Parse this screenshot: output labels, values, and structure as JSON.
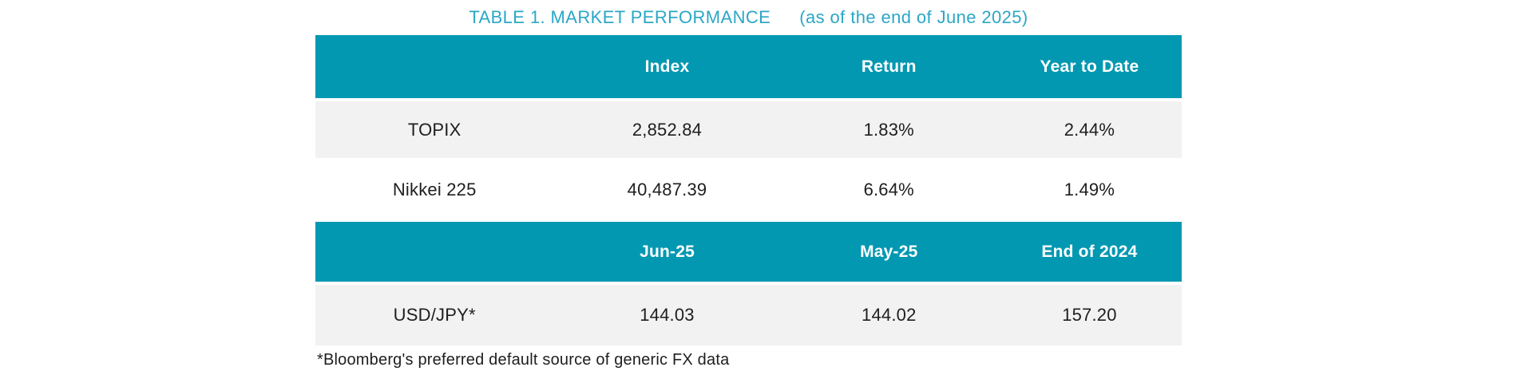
{
  "title": {
    "main": "TABLE 1. MARKET PERFORMANCE",
    "suffix": "(as of the end of June 2025)"
  },
  "colors": {
    "header_bg": "#0398B2",
    "header_text": "#FFFFFF",
    "title_text": "#2BA7C6",
    "row_alt_bg": "#F2F2F2",
    "body_text": "#1E1E1E"
  },
  "index_table": {
    "headers": [
      "",
      "Index",
      "Return",
      "Year to Date"
    ],
    "rows": [
      {
        "cells": [
          "TOPIX",
          "2,852.84",
          "1.83%",
          "2.44%"
        ]
      },
      {
        "cells": [
          "Nikkei 225",
          "40,487.39",
          "6.64%",
          "1.49%"
        ]
      }
    ]
  },
  "fx_table": {
    "headers": [
      "",
      "Jun-25",
      "May-25",
      "End of 2024"
    ],
    "rows": [
      {
        "cells": [
          "USD/JPY*",
          "144.03",
          "144.02",
          "157.20"
        ]
      }
    ]
  },
  "footnote": "*Bloomberg's preferred default source of generic FX data"
}
